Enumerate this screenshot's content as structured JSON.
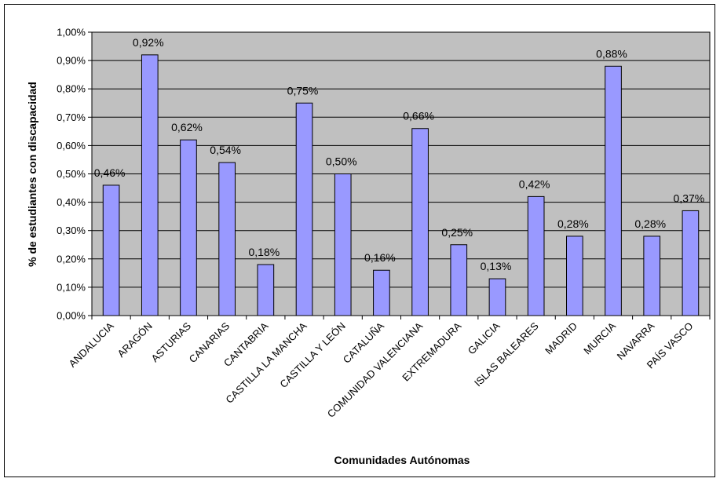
{
  "chart_data": {
    "type": "bar",
    "xlabel": "Comunidades Autónomas",
    "ylabel": "% de estudiantes con discapacidad",
    "ylim": [
      0,
      1.0
    ],
    "yticks": [
      "0,00%",
      "0,10%",
      "0,20%",
      "0,30%",
      "0,40%",
      "0,50%",
      "0,60%",
      "0,70%",
      "0,80%",
      "0,90%",
      "1,00%"
    ],
    "grid": true,
    "categories": [
      "ANDALUCIA",
      "ARAGÓN",
      "ASTURIAS",
      "CANARIAS",
      "CANTABRIA",
      "CASTILLA LA MANCHA",
      "CASTILLA Y LEÓN",
      "CATALUÑA",
      "COMUNIDAD VALENCIANA",
      "EXTREMADURA",
      "GALICIA",
      "ISLAS BALEARES",
      "MADRID",
      "MURCIA",
      "NAVARRA",
      "PAÍS VASCO"
    ],
    "values": [
      0.46,
      0.92,
      0.62,
      0.54,
      0.18,
      0.75,
      0.5,
      0.16,
      0.66,
      0.25,
      0.13,
      0.42,
      0.28,
      0.88,
      0.28,
      0.37
    ],
    "data_labels": [
      "0,46%",
      "0,92%",
      "0,62%",
      "0,54%",
      "0,18%",
      "0,75%",
      "0,50%",
      "0,16%",
      "0,66%",
      "0,25%",
      "0,13%",
      "0,42%",
      "0,28%",
      "0,88%",
      "0,28%",
      "0,37%"
    ],
    "colors": {
      "bar_fill": "#9999ff",
      "bar_stroke": "#000000",
      "plot_bg": "#c0c0c0",
      "grid": "#000000"
    }
  }
}
